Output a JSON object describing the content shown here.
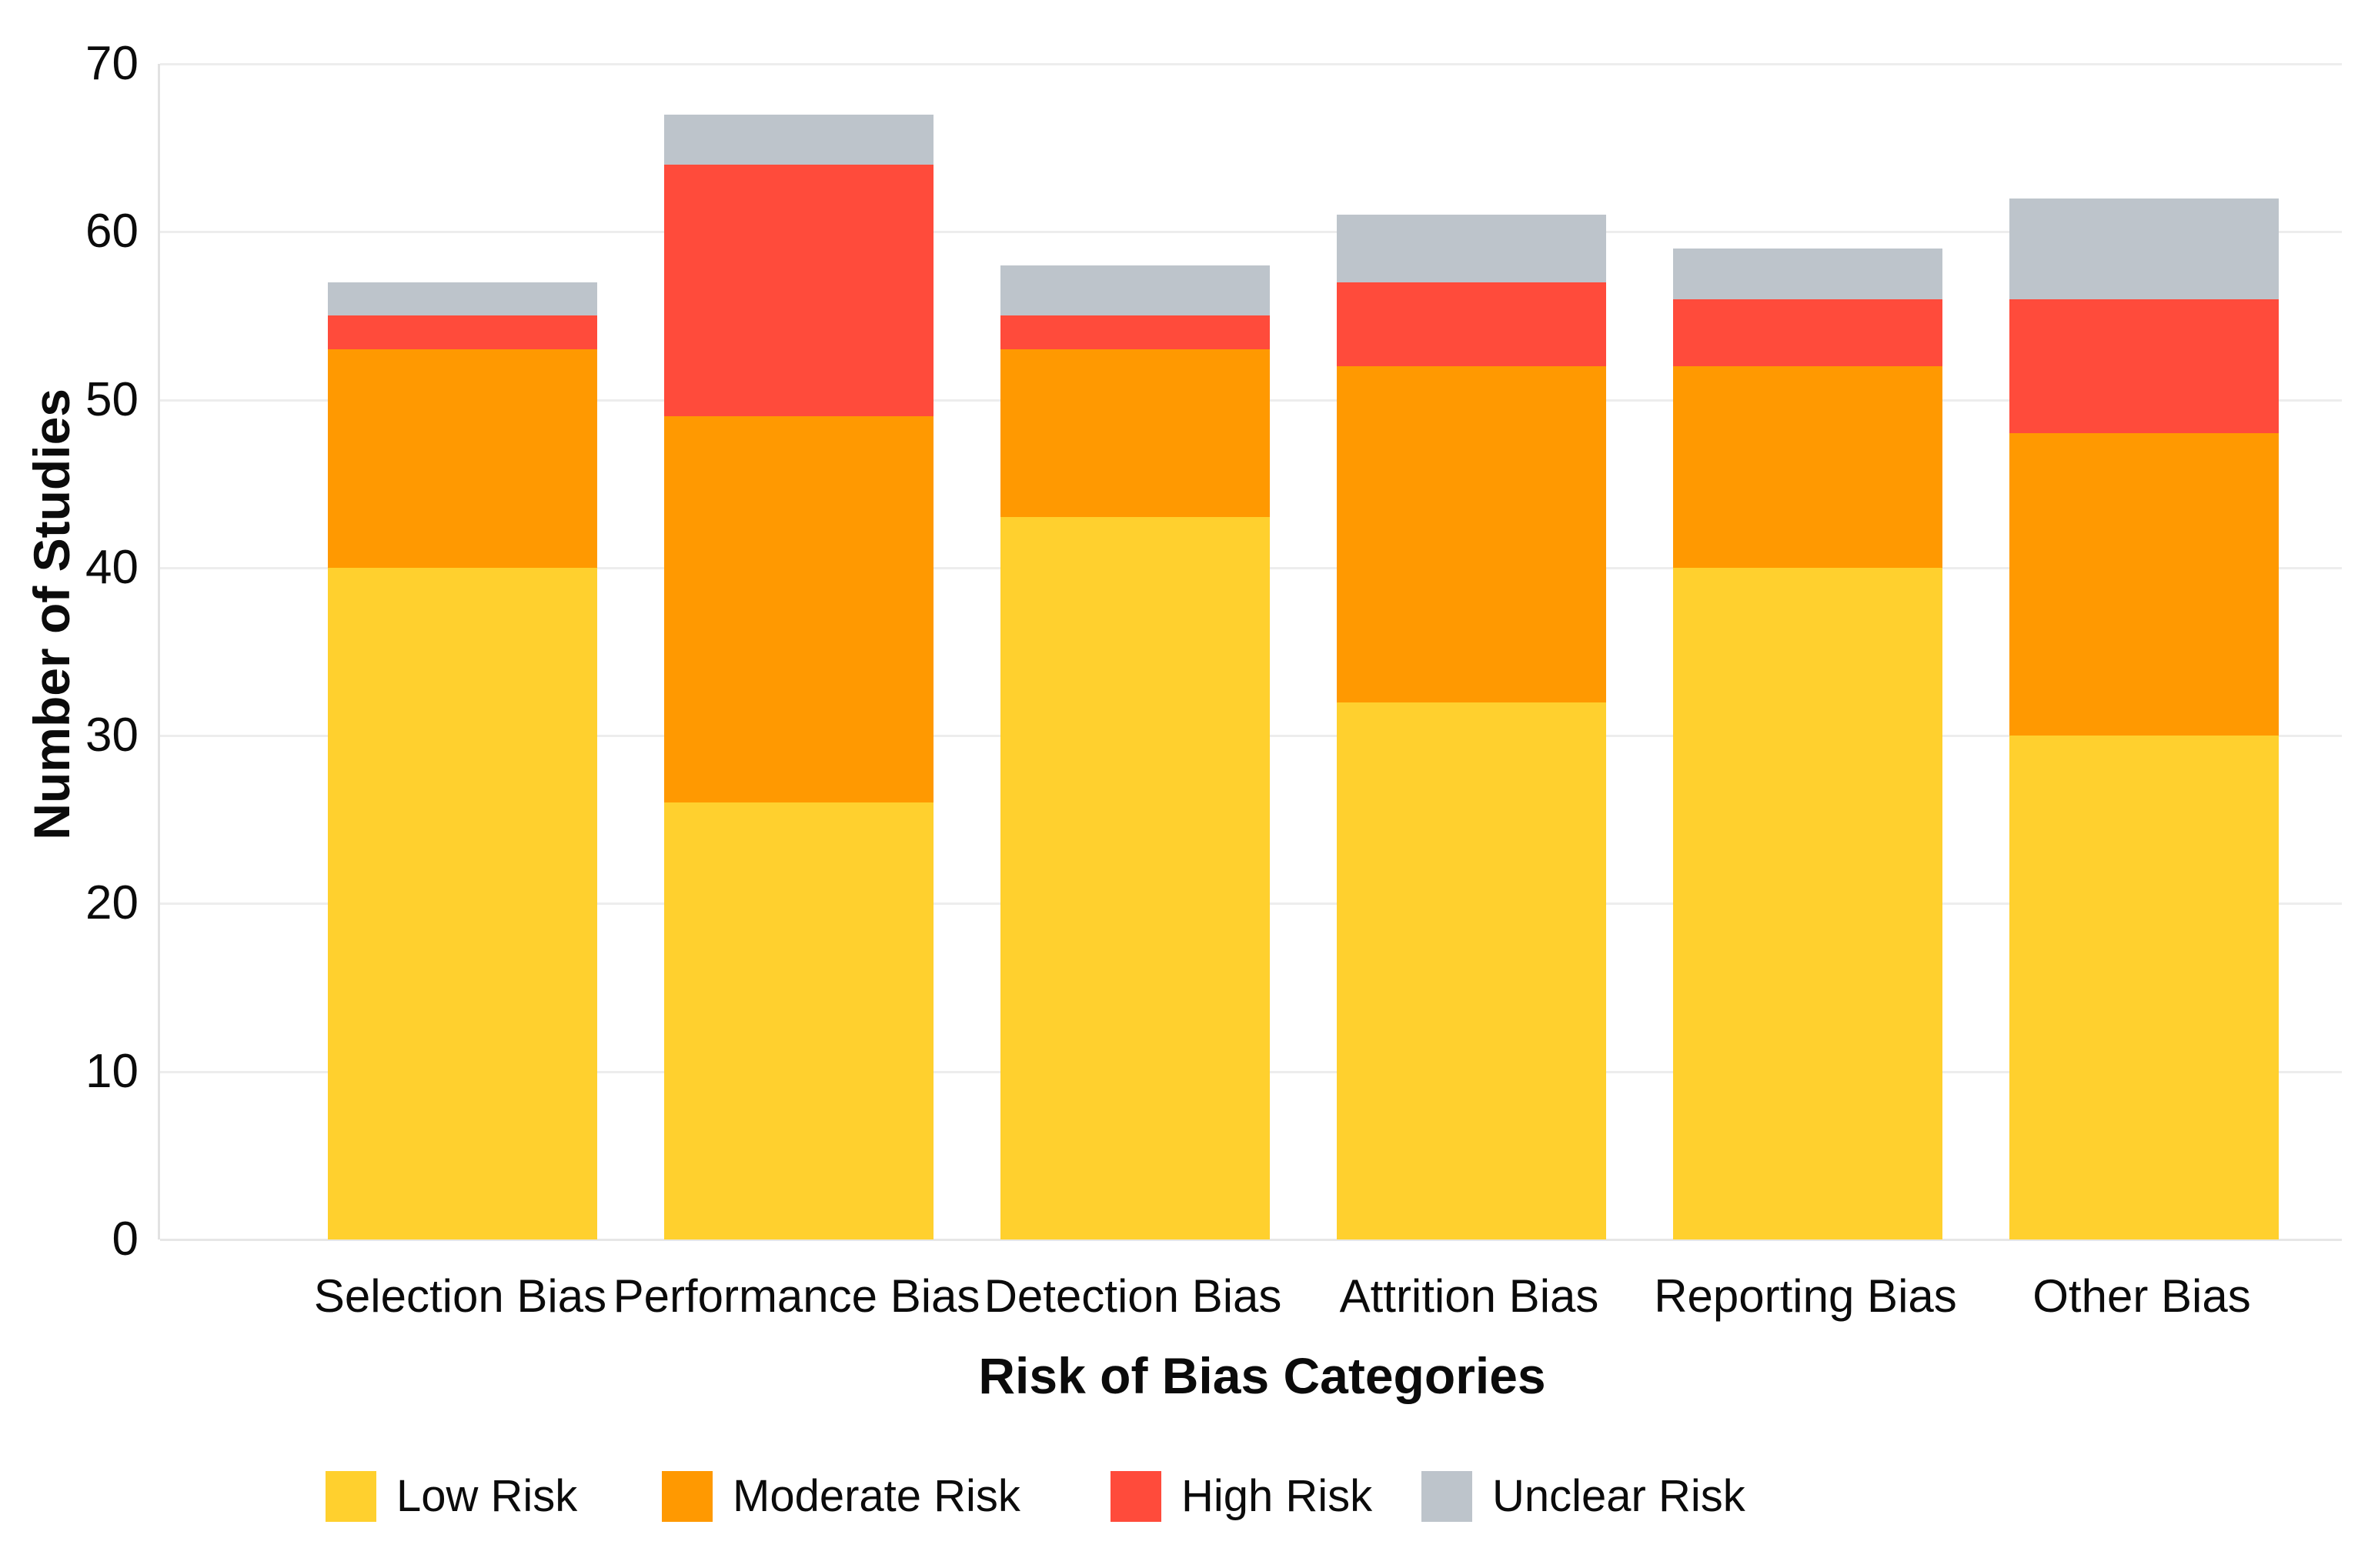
{
  "chart_data": {
    "type": "bar",
    "stacked": true,
    "xlabel": "Risk of Bias Categories",
    "ylabel": "Number of Studies",
    "categories": [
      "Selection Bias",
      "Performance Bias",
      "Detection Bias",
      "Attrition Bias",
      "Reporting Bias",
      "Other Bias"
    ],
    "series": [
      {
        "name": "Low Risk",
        "color": "#FFD02E",
        "values": [
          40,
          26,
          43,
          32,
          40,
          30
        ]
      },
      {
        "name": "Moderate Risk",
        "color": "#FF9901",
        "values": [
          13,
          23,
          10,
          20,
          12,
          18
        ]
      },
      {
        "name": "High Risk",
        "color": "#FF4B3B",
        "values": [
          2,
          15,
          2,
          5,
          4,
          8
        ]
      },
      {
        "name": "Unclear Risk",
        "color": "#BDC4CB",
        "values": [
          2,
          3,
          3,
          4,
          3,
          6
        ]
      }
    ],
    "totals": [
      57,
      67,
      58,
      61,
      59,
      62
    ],
    "ylim": [
      0,
      70
    ],
    "y_ticks": [
      0,
      10,
      20,
      30,
      40,
      50,
      60,
      70
    ],
    "grid": true,
    "legend_position": "bottom",
    "legend_labels": [
      "Low Risk",
      "Moderate Risk",
      "High Risk",
      "Unclear Risk"
    ]
  },
  "colors": {
    "grid": "#EDEDED",
    "spine": "#E2E2E2",
    "text": "#0B0B0B",
    "background": "#FFFFFF"
  }
}
